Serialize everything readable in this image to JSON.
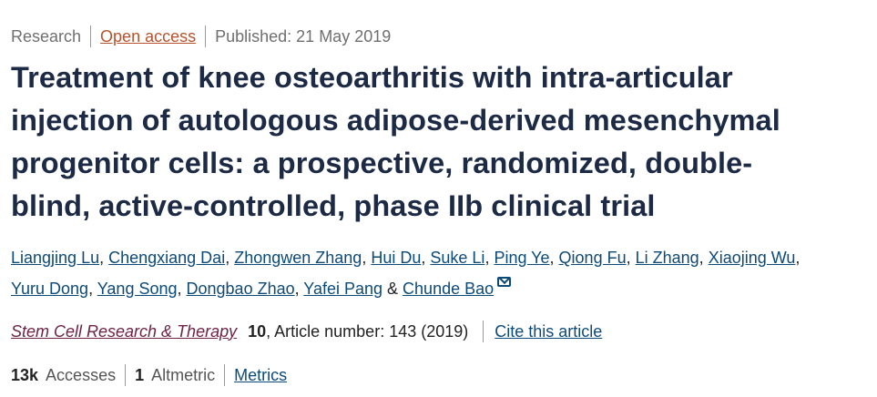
{
  "meta": {
    "type": "Research",
    "access": "Open access",
    "published": "Published: 21 May 2019"
  },
  "title_lines": [
    "Treatment of knee osteoarthritis with intra-articular",
    "injection of autologous adipose-derived mesenchymal",
    "progenitor cells: a prospective, randomized, double-",
    "blind, active-controlled, phase IIb clinical trial"
  ],
  "authors": [
    "Liangjing Lu",
    "Chengxiang Dai",
    "Zhongwen Zhang",
    "Hui Du",
    "Suke Li",
    "Ping Ye",
    "Qiong Fu",
    "Li Zhang",
    "Xiaojing Wu",
    "Yuru Dong",
    "Yang Song",
    "Dongbao Zhao",
    "Yafei Pang",
    "Chunde Bao"
  ],
  "authors_sep": {
    "comma": ", ",
    "and": " & "
  },
  "journal": {
    "name": "Stem Cell Research & Therapy",
    "volume": "10",
    "article": ", Article number: 143 (2019)",
    "cite": "Cite this article"
  },
  "metrics": {
    "accesses_count": "13k",
    "accesses_label": "Accesses",
    "altmetric_count": "1",
    "altmetric_label": "Altmetric",
    "metrics_link": "Metrics"
  }
}
